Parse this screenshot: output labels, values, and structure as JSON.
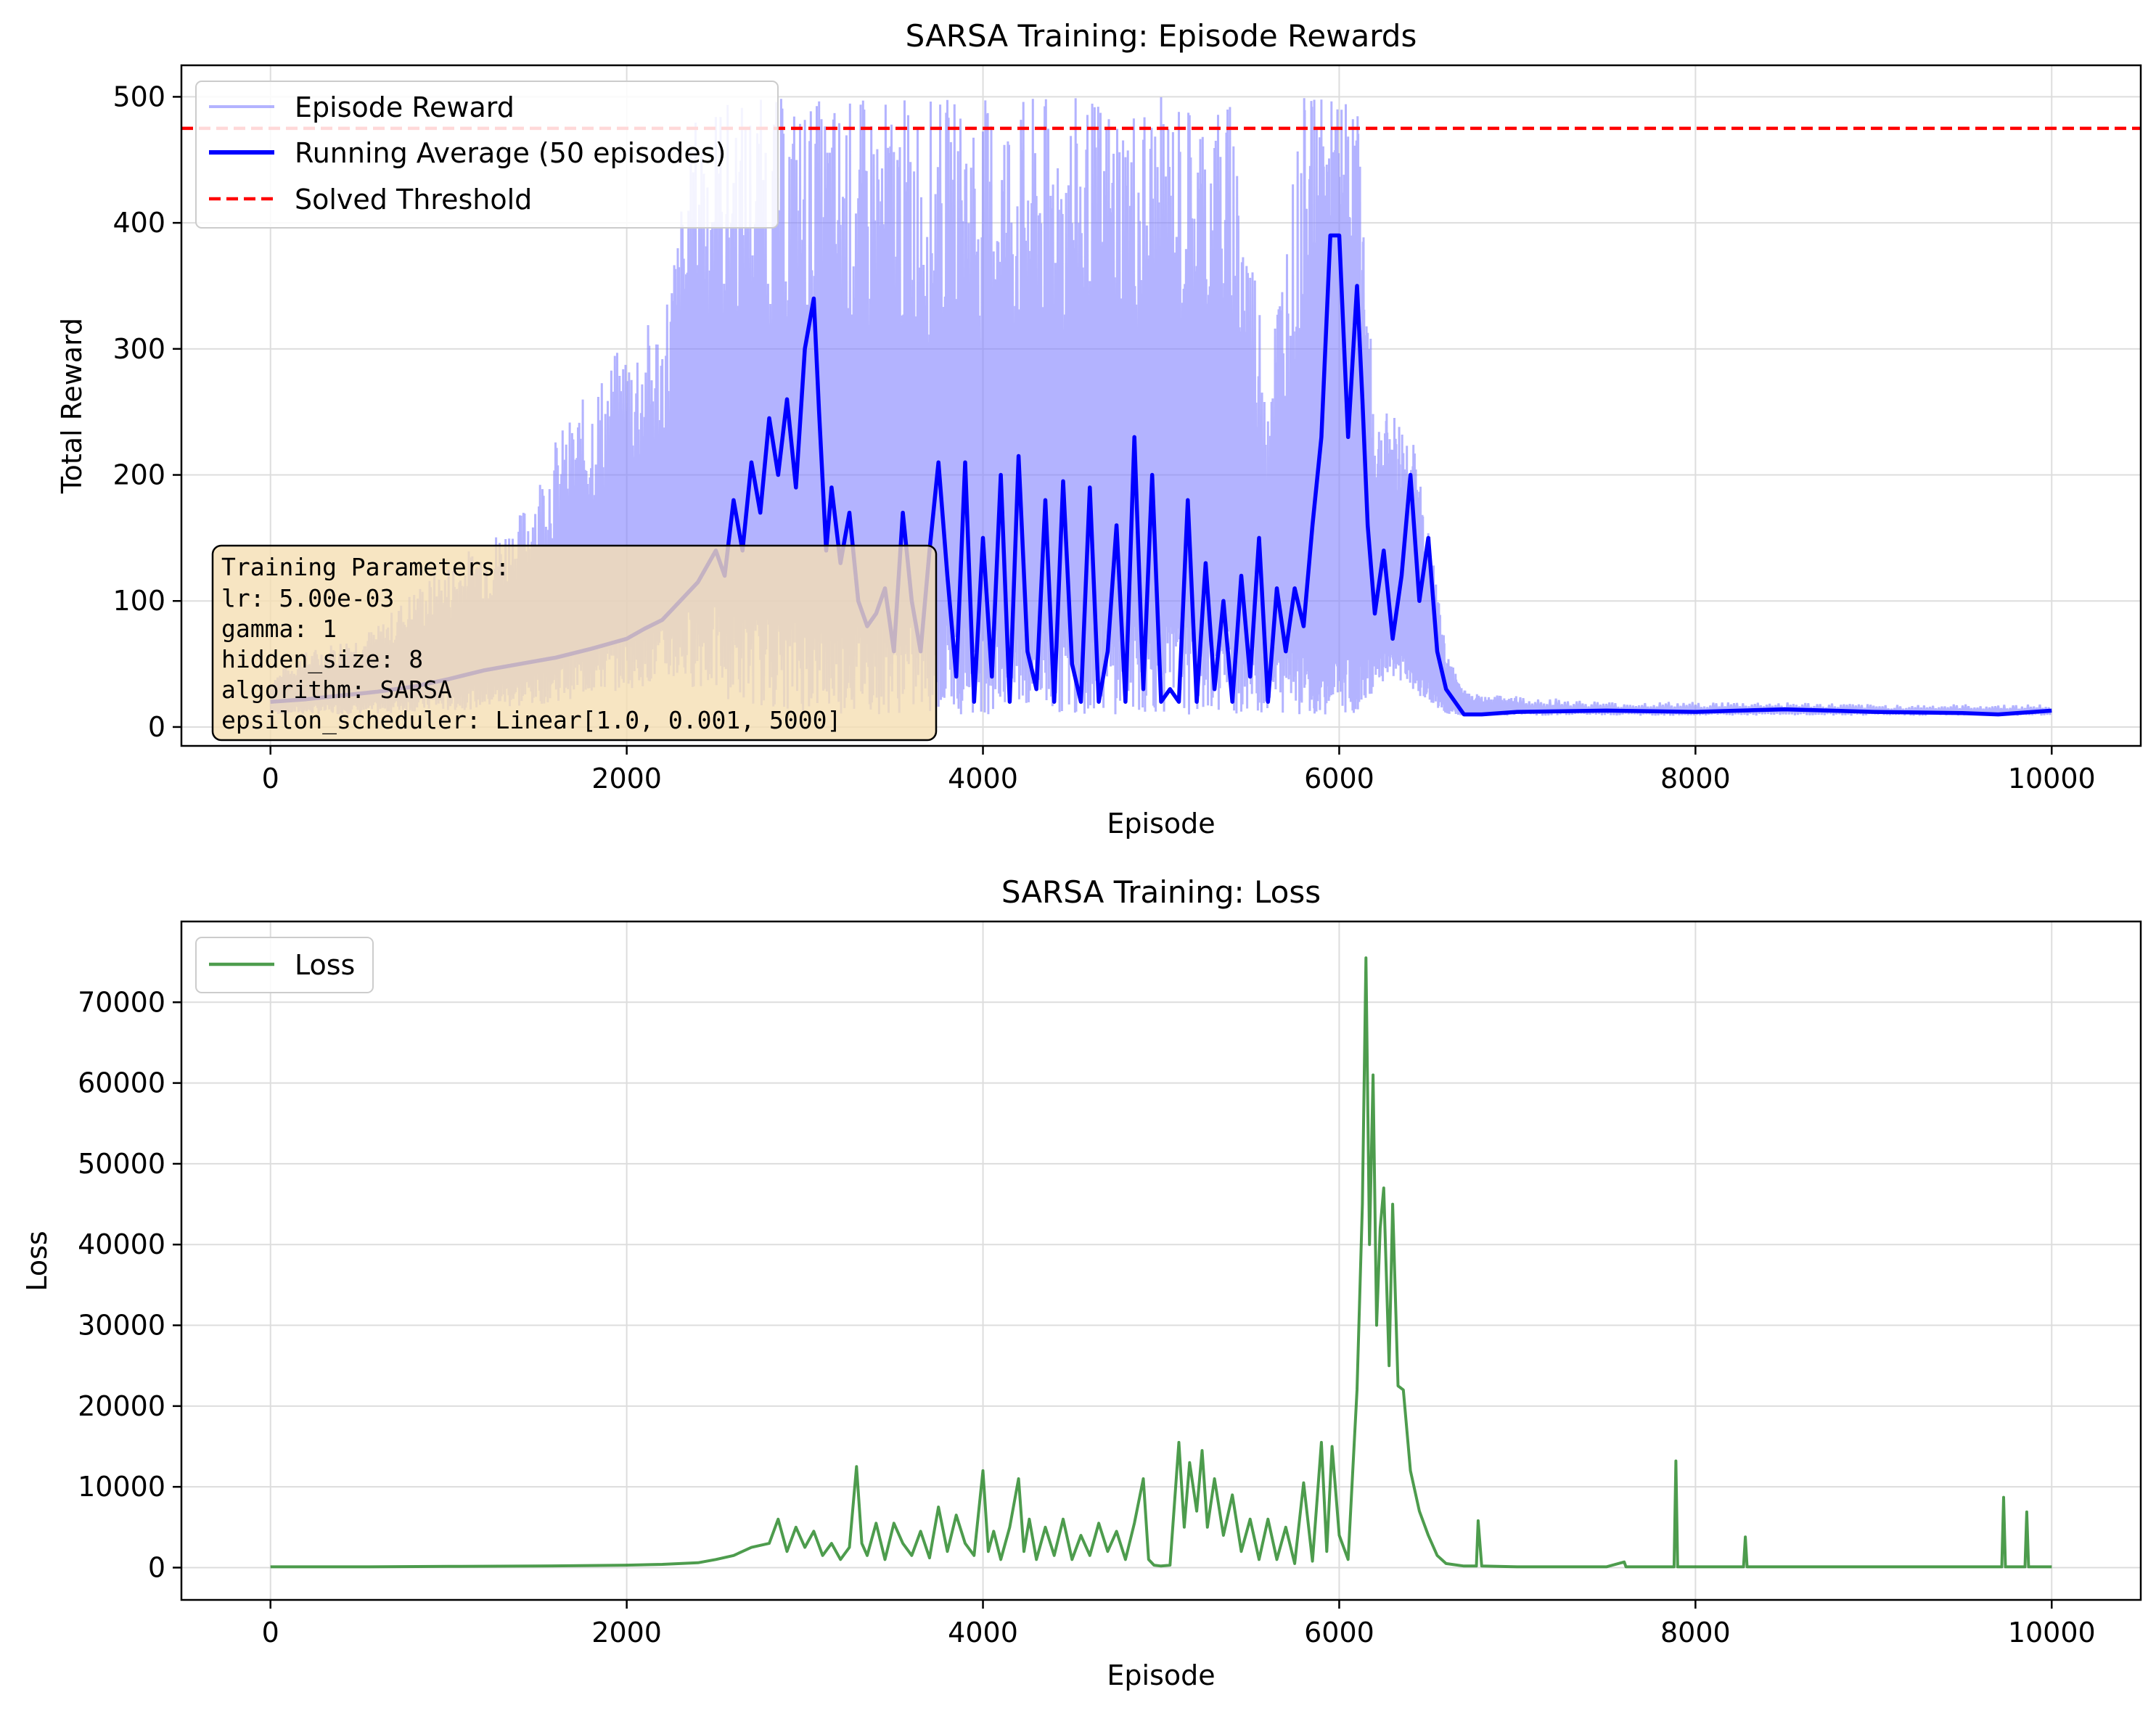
{
  "chart_data": [
    {
      "type": "line",
      "title": "SARSA Training: Episode Rewards",
      "xlabel": "Episode",
      "ylabel": "Total Reward",
      "xlim": [
        -500,
        10500
      ],
      "ylim": [
        -15,
        525
      ],
      "xticks": [
        0,
        2000,
        4000,
        6000,
        8000,
        10000
      ],
      "yticks": [
        0,
        100,
        200,
        300,
        400,
        500
      ],
      "grid": true,
      "legend_position": "upper-left",
      "colors": {
        "episode": "#8080ff",
        "average": "#0000ff",
        "threshold": "#ff0000"
      },
      "series": [
        {
          "name": "Episode Reward",
          "style": "light-line",
          "x": [
            0,
            200,
            400,
            600,
            800,
            1000,
            1200,
            1400,
            1600,
            1800,
            2000,
            2200,
            2400,
            2600,
            2800,
            3000,
            3200,
            3400,
            3600,
            3800,
            4000,
            4200,
            4400,
            4600,
            4800,
            5000,
            5200,
            5400,
            5600,
            5800,
            5900,
            6000,
            6100,
            6200,
            6300,
            6400,
            6500,
            6600,
            6700,
            6800,
            7000,
            7500,
            8000,
            8500,
            9000,
            9500,
            10000
          ],
          "envelope_high": [
            40,
            60,
            70,
            80,
            110,
            130,
            150,
            170,
            230,
            270,
            310,
            330,
            500,
            500,
            500,
            500,
            500,
            500,
            500,
            500,
            500,
            500,
            500,
            500,
            500,
            500,
            500,
            500,
            300,
            500,
            500,
            500,
            500,
            250,
            250,
            240,
            160,
            60,
            30,
            25,
            25,
            20,
            20,
            20,
            18,
            18,
            18
          ],
          "envelope_low": [
            10,
            10,
            10,
            10,
            12,
            12,
            15,
            15,
            20,
            25,
            30,
            35,
            30,
            20,
            15,
            12,
            10,
            10,
            10,
            10,
            10,
            10,
            10,
            10,
            10,
            10,
            10,
            10,
            10,
            10,
            10,
            10,
            10,
            30,
            40,
            30,
            20,
            10,
            9,
            9,
            9,
            9,
            9,
            9,
            9,
            9,
            9
          ]
        },
        {
          "name": "Running Average (50 episodes)",
          "style": "bold-line",
          "x": [
            0,
            200,
            400,
            600,
            800,
            1000,
            1200,
            1400,
            1600,
            1800,
            2000,
            2100,
            2200,
            2300,
            2400,
            2500,
            2550,
            2600,
            2650,
            2700,
            2750,
            2800,
            2850,
            2900,
            2950,
            3000,
            3050,
            3080,
            3120,
            3150,
            3200,
            3250,
            3300,
            3350,
            3400,
            3450,
            3500,
            3550,
            3600,
            3650,
            3700,
            3750,
            3800,
            3850,
            3900,
            3950,
            4000,
            4050,
            4100,
            4150,
            4200,
            4250,
            4300,
            4350,
            4400,
            4450,
            4500,
            4550,
            4600,
            4650,
            4700,
            4750,
            4800,
            4850,
            4900,
            4950,
            5000,
            5050,
            5100,
            5150,
            5200,
            5250,
            5300,
            5350,
            5400,
            5450,
            5500,
            5550,
            5600,
            5650,
            5700,
            5750,
            5800,
            5850,
            5900,
            5950,
            6000,
            6050,
            6100,
            6130,
            6160,
            6200,
            6250,
            6300,
            6350,
            6400,
            6450,
            6500,
            6550,
            6600,
            6650,
            6700,
            6800,
            7000,
            7500,
            8000,
            8500,
            9000,
            9500,
            9700,
            10000
          ],
          "values": [
            20,
            22,
            25,
            28,
            32,
            38,
            45,
            50,
            55,
            62,
            70,
            78,
            85,
            100,
            115,
            140,
            120,
            180,
            140,
            210,
            170,
            245,
            200,
            260,
            190,
            300,
            340,
            250,
            140,
            190,
            130,
            170,
            100,
            80,
            90,
            110,
            60,
            170,
            100,
            60,
            140,
            210,
            120,
            40,
            210,
            20,
            150,
            40,
            200,
            20,
            215,
            60,
            30,
            180,
            20,
            195,
            50,
            20,
            190,
            20,
            60,
            160,
            20,
            230,
            30,
            200,
            20,
            30,
            20,
            180,
            20,
            130,
            30,
            100,
            20,
            120,
            40,
            150,
            20,
            110,
            60,
            110,
            80,
            160,
            230,
            390,
            390,
            230,
            350,
            260,
            160,
            90,
            140,
            70,
            120,
            200,
            100,
            150,
            60,
            30,
            20,
            10,
            10,
            12,
            13,
            12,
            14,
            12,
            11,
            10,
            13
          ]
        },
        {
          "name": "Solved Threshold",
          "style": "dashed",
          "x": [
            -500,
            10500
          ],
          "values": [
            475,
            475
          ]
        }
      ],
      "annotation": {
        "lines": [
          "Training Parameters:",
          "lr: 5.00e-03",
          "gamma: 1",
          "hidden_size: 8",
          "algorithm: SARSA",
          "epsilon_scheduler: Linear[1.0, 0.001, 5000]"
        ],
        "box_color": "#f5deb3"
      }
    },
    {
      "type": "line",
      "title": "SARSA Training: Loss",
      "xlabel": "Episode",
      "ylabel": "Loss",
      "xlim": [
        -500,
        10500
      ],
      "ylim": [
        -4000,
        80000
      ],
      "xticks": [
        0,
        2000,
        4000,
        6000,
        8000,
        10000
      ],
      "yticks": [
        0,
        10000,
        20000,
        30000,
        40000,
        50000,
        60000,
        70000
      ],
      "grid": true,
      "legend_position": "upper-left",
      "colors": {
        "loss": "#2e8b2e"
      },
      "series": [
        {
          "name": "Loss",
          "x": [
            0,
            500,
            1000,
            1500,
            2000,
            2200,
            2400,
            2500,
            2600,
            2700,
            2800,
            2850,
            2900,
            2950,
            3000,
            3050,
            3100,
            3150,
            3200,
            3250,
            3290,
            3320,
            3350,
            3400,
            3450,
            3500,
            3550,
            3600,
            3650,
            3700,
            3750,
            3800,
            3850,
            3900,
            3950,
            4000,
            4030,
            4060,
            4100,
            4150,
            4200,
            4230,
            4260,
            4300,
            4350,
            4400,
            4450,
            4500,
            4550,
            4600,
            4650,
            4700,
            4750,
            4800,
            4850,
            4900,
            4930,
            4960,
            5000,
            5050,
            5100,
            5130,
            5160,
            5200,
            5230,
            5260,
            5300,
            5350,
            5400,
            5450,
            5500,
            5550,
            5600,
            5650,
            5700,
            5750,
            5800,
            5850,
            5900,
            5930,
            5960,
            6000,
            6050,
            6100,
            6130,
            6150,
            6170,
            6190,
            6210,
            6230,
            6250,
            6280,
            6300,
            6330,
            6360,
            6400,
            6450,
            6500,
            6550,
            6600,
            6700,
            6770,
            6780,
            6800,
            7000,
            7500,
            7600,
            7610,
            7700,
            7880,
            7890,
            7900,
            8000,
            8270,
            8280,
            8290,
            8500,
            9000,
            9500,
            9720,
            9730,
            9740,
            9850,
            9860,
            9870,
            10000
          ],
          "values": [
            100,
            100,
            150,
            200,
            300,
            400,
            600,
            1000,
            1500,
            2500,
            3000,
            6000,
            2000,
            5000,
            2500,
            4500,
            1500,
            3000,
            1000,
            2500,
            12500,
            3000,
            1500,
            5500,
            1000,
            5500,
            3000,
            1500,
            4500,
            1200,
            7500,
            2000,
            6500,
            3000,
            1500,
            12000,
            2000,
            4500,
            1000,
            5000,
            11000,
            2000,
            6000,
            1000,
            5000,
            1500,
            6000,
            1000,
            4000,
            1500,
            5500,
            2000,
            4500,
            1000,
            5500,
            11000,
            1000,
            300,
            200,
            300,
            15500,
            5000,
            13000,
            7000,
            14500,
            5000,
            11000,
            4000,
            9000,
            2000,
            6000,
            1000,
            6000,
            1000,
            5000,
            500,
            10500,
            800,
            15500,
            2000,
            15000,
            4000,
            1000,
            22000,
            45000,
            75500,
            40000,
            61000,
            30000,
            42000,
            47000,
            25000,
            45000,
            22500,
            22000,
            12000,
            7000,
            4000,
            1500,
            500,
            200,
            200,
            5800,
            200,
            100,
            100,
            700,
            100,
            100,
            100,
            13200,
            100,
            100,
            100,
            3800,
            100,
            100,
            100,
            100,
            100,
            8700,
            100,
            100,
            6900,
            100,
            100
          ]
        }
      ]
    }
  ]
}
